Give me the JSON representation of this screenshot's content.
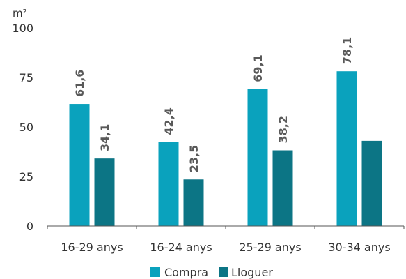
{
  "chart_data": {
    "type": "bar",
    "unit_label": "m²",
    "categories": [
      "16-29 anys",
      "16-24 anys",
      "25-29 anys",
      "30-34 anys"
    ],
    "series": [
      {
        "name": "Compra",
        "color": "#0aa2bd",
        "values": [
          61.6,
          42.4,
          69.1,
          78.1
        ],
        "labels": [
          "61,6",
          "42,4",
          "69,1",
          "78,1"
        ]
      },
      {
        "name": "Lloguer",
        "color": "#0c7585",
        "values": [
          34.1,
          23.5,
          38.2,
          43.0
        ],
        "labels": [
          "34,1",
          "23,5",
          "38,2",
          ""
        ]
      }
    ],
    "ylim": [
      0,
      100
    ],
    "yticks": [
      0,
      25,
      50,
      75,
      100
    ],
    "grid": false,
    "legend_position": "bottom"
  }
}
